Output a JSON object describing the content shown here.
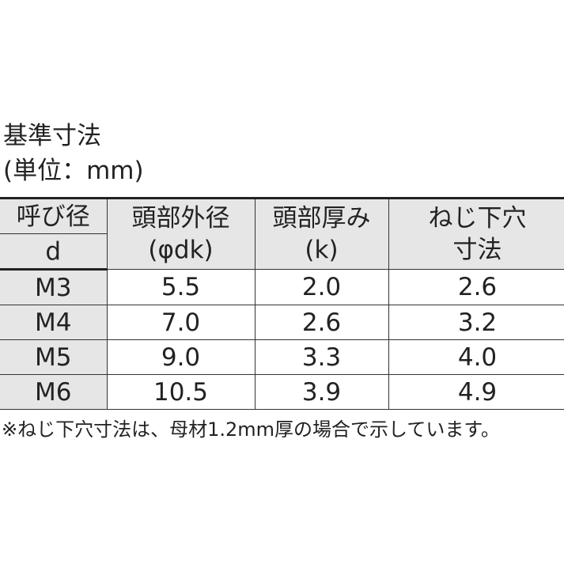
{
  "title": "基準寸法",
  "unit": "(単位：mm)",
  "table": {
    "headers": [
      {
        "line1": "呼び径",
        "line2": "d"
      },
      {
        "line1": "頭部外径",
        "line2": "(φdk)"
      },
      {
        "line1": "頭部厚み",
        "line2": "(k)"
      },
      {
        "line1": "ねじ下穴",
        "line2": "寸法"
      }
    ],
    "rows": [
      [
        "M3",
        "5.5",
        "2.0",
        "2.6"
      ],
      [
        "M4",
        "7.0",
        "2.6",
        "3.2"
      ],
      [
        "M5",
        "9.0",
        "3.3",
        "4.0"
      ],
      [
        "M6",
        "10.5",
        "3.9",
        "4.9"
      ]
    ]
  },
  "note": "※ねじ下穴寸法は、母材1.2mm厚の場合で示しています。",
  "colors": {
    "header_bg": "#e6e6e6",
    "border": "#333333"
  }
}
